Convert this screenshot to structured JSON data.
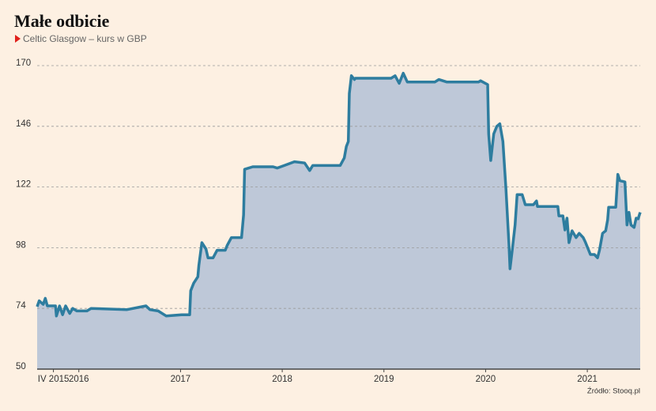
{
  "chart_data": {
    "type": "area",
    "title": "Małe odbicie",
    "subtitle": "Celtic Glasgow – kurs w GBP",
    "source": "Źródło: Stooq.pl",
    "xlim": [
      2015.59,
      2021.52
    ],
    "xticks": [
      {
        "value": 2015.75,
        "label": "IV 2015"
      },
      2016,
      2017,
      2018,
      2019,
      2020,
      2021
    ],
    "ylim": [
      50,
      170
    ],
    "yticks": [
      50,
      74,
      98,
      122,
      146,
      170
    ],
    "grid": true,
    "series": [
      {
        "name": "Celtic Glasgow",
        "color": "#2e7d9f",
        "fill": "#bec8d8",
        "x": [
          2015.59,
          2015.61,
          2015.65,
          2015.67,
          2015.69,
          2015.77,
          2015.78,
          2015.81,
          2015.84,
          2015.87,
          2015.91,
          2015.94,
          2015.98,
          2016.04,
          2016.08,
          2016.12,
          2016.47,
          2016.66,
          2016.7,
          2016.78,
          2016.86,
          2017.01,
          2017.09,
          2017.1,
          2017.13,
          2017.17,
          2017.18,
          2017.21,
          2017.25,
          2017.27,
          2017.32,
          2017.36,
          2017.44,
          2017.46,
          2017.5,
          2017.6,
          2017.62,
          2017.63,
          2017.71,
          2017.91,
          2017.95,
          2018.02,
          2018.12,
          2018.22,
          2018.27,
          2018.3,
          2018.57,
          2018.61,
          2018.63,
          2018.65,
          2018.66,
          2018.68,
          2018.71,
          2018.72,
          2019.07,
          2019.11,
          2019.15,
          2019.19,
          2019.23,
          2019.5,
          2019.54,
          2019.62,
          2019.93,
          2019.95,
          2020.02,
          2020.03,
          2020.05,
          2020.08,
          2020.11,
          2020.14,
          2020.17,
          2020.2,
          2020.23,
          2020.24,
          2020.26,
          2020.29,
          2020.31,
          2020.36,
          2020.39,
          2020.47,
          2020.5,
          2020.51,
          2020.71,
          2020.72,
          2020.76,
          2020.78,
          2020.8,
          2020.82,
          2020.85,
          2020.89,
          2020.92,
          2020.96,
          2020.98,
          2021.03,
          2021.07,
          2021.1,
          2021.12,
          2021.15,
          2021.18,
          2021.2,
          2021.21,
          2021.28,
          2021.3,
          2021.32,
          2021.37,
          2021.39,
          2021.41,
          2021.43,
          2021.46,
          2021.48,
          2021.5,
          2021.52
        ],
        "values": [
          74.7,
          77,
          75.6,
          78,
          75,
          75,
          71,
          75,
          71.5,
          75,
          72,
          74,
          73,
          73,
          73,
          74,
          73.5,
          75,
          73.5,
          73,
          71,
          71.5,
          71.5,
          81,
          84,
          86.5,
          91,
          100,
          97.5,
          94,
          94,
          97,
          97,
          99,
          102,
          102,
          111,
          129,
          130,
          130,
          129.5,
          130.5,
          132,
          131.5,
          128.5,
          130.5,
          130.5,
          133.5,
          138,
          140,
          159,
          166,
          164.5,
          165,
          165,
          166,
          163,
          167,
          163.5,
          163.5,
          164.5,
          163.5,
          163.5,
          164,
          162.5,
          143,
          132.5,
          143,
          146,
          147,
          140,
          121,
          99,
          89.7,
          96.5,
          107,
          119,
          119,
          115,
          115,
          116.5,
          114.3,
          114.3,
          110.6,
          110.6,
          105,
          109.7,
          100,
          104.7,
          102,
          103.7,
          102,
          100.3,
          95.3,
          95.3,
          94,
          97,
          103.7,
          104.7,
          109,
          114,
          114,
          127,
          124.5,
          124,
          107,
          112,
          107,
          106,
          109.7,
          109.4,
          112
        ]
      }
    ]
  }
}
